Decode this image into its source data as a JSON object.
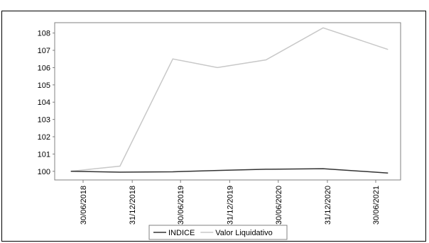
{
  "chart_data": {
    "type": "line",
    "x": [
      "30/06/2018",
      "31/12/2018",
      "30/06/2019",
      "31/12/2019",
      "30/06/2020",
      "31/12/2020",
      "30/06/2021"
    ],
    "ylim": [
      99.5,
      108.6
    ],
    "y_ticks": [
      "100",
      "101",
      "102",
      "103",
      "104",
      "105",
      "106",
      "107",
      "108"
    ],
    "grid": false,
    "legend_position": "bottom",
    "series": [
      {
        "name": "INDICE",
        "color": "#333333",
        "points": [
          {
            "x": "2018-05-15",
            "y": 100.0
          },
          {
            "x": "2018-11-15",
            "y": 99.95
          },
          {
            "x": "2019-06-01",
            "y": 99.97
          },
          {
            "x": "2019-11-15",
            "y": 100.05
          },
          {
            "x": "2020-05-15",
            "y": 100.12
          },
          {
            "x": "2020-12-15",
            "y": 100.15
          },
          {
            "x": "2021-08-15",
            "y": 99.9
          }
        ]
      },
      {
        "name": "Valor Liquidativo",
        "color": "#c8c8c8",
        "points": [
          {
            "x": "2018-05-15",
            "y": 100.0
          },
          {
            "x": "2018-11-15",
            "y": 100.3
          },
          {
            "x": "2019-06-01",
            "y": 106.5
          },
          {
            "x": "2019-11-15",
            "y": 106.0
          },
          {
            "x": "2020-05-15",
            "y": 106.45
          },
          {
            "x": "2020-12-15",
            "y": 108.3
          },
          {
            "x": "2021-08-15",
            "y": 107.05
          }
        ]
      }
    ]
  }
}
